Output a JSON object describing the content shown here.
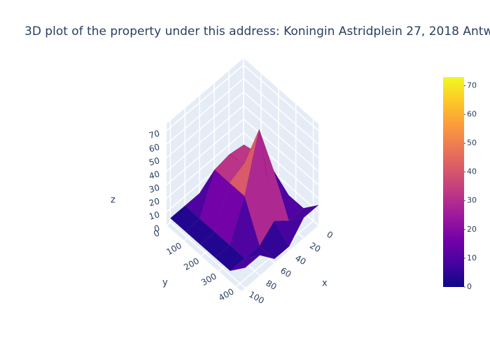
{
  "chart_data": {
    "type": "surface",
    "title": "3D plot of the property under this address: Koningin Astridplein 27, 2018 Antw",
    "x_label": "x",
    "y_label": "y",
    "z_label": "z",
    "x": [
      0,
      20,
      40,
      60,
      80,
      100
    ],
    "y": [
      0,
      86,
      172,
      258,
      344,
      430
    ],
    "z": [
      [
        3,
        3,
        3,
        3,
        3,
        3
      ],
      [
        3,
        30,
        32,
        30,
        3,
        3
      ],
      [
        3,
        33,
        35,
        30,
        3,
        3
      ],
      [
        3,
        30,
        70,
        30,
        3,
        3
      ],
      [
        3,
        3,
        12,
        3,
        3,
        3
      ],
      [
        15,
        15,
        3,
        3,
        15,
        15
      ]
    ],
    "xlim": [
      0,
      105
    ],
    "ylim": [
      0,
      430
    ],
    "zlim": [
      0,
      75
    ],
    "xticks": [
      0,
      20,
      40,
      60,
      80,
      100
    ],
    "yticks": [
      0,
      100,
      200,
      300,
      400
    ],
    "zticks": [
      0,
      10,
      20,
      30,
      40,
      50,
      60,
      70
    ],
    "clim": [
      0,
      73
    ],
    "cticks": [
      0,
      10,
      20,
      30,
      40,
      50,
      60,
      70
    ],
    "colorscale": [
      "#0d0887",
      "#46039f",
      "#7201a8",
      "#9c179e",
      "#bd3786",
      "#d8576b",
      "#ed7953",
      "#fb9f3a",
      "#fdca26",
      "#f0f921"
    ],
    "grid": true
  }
}
